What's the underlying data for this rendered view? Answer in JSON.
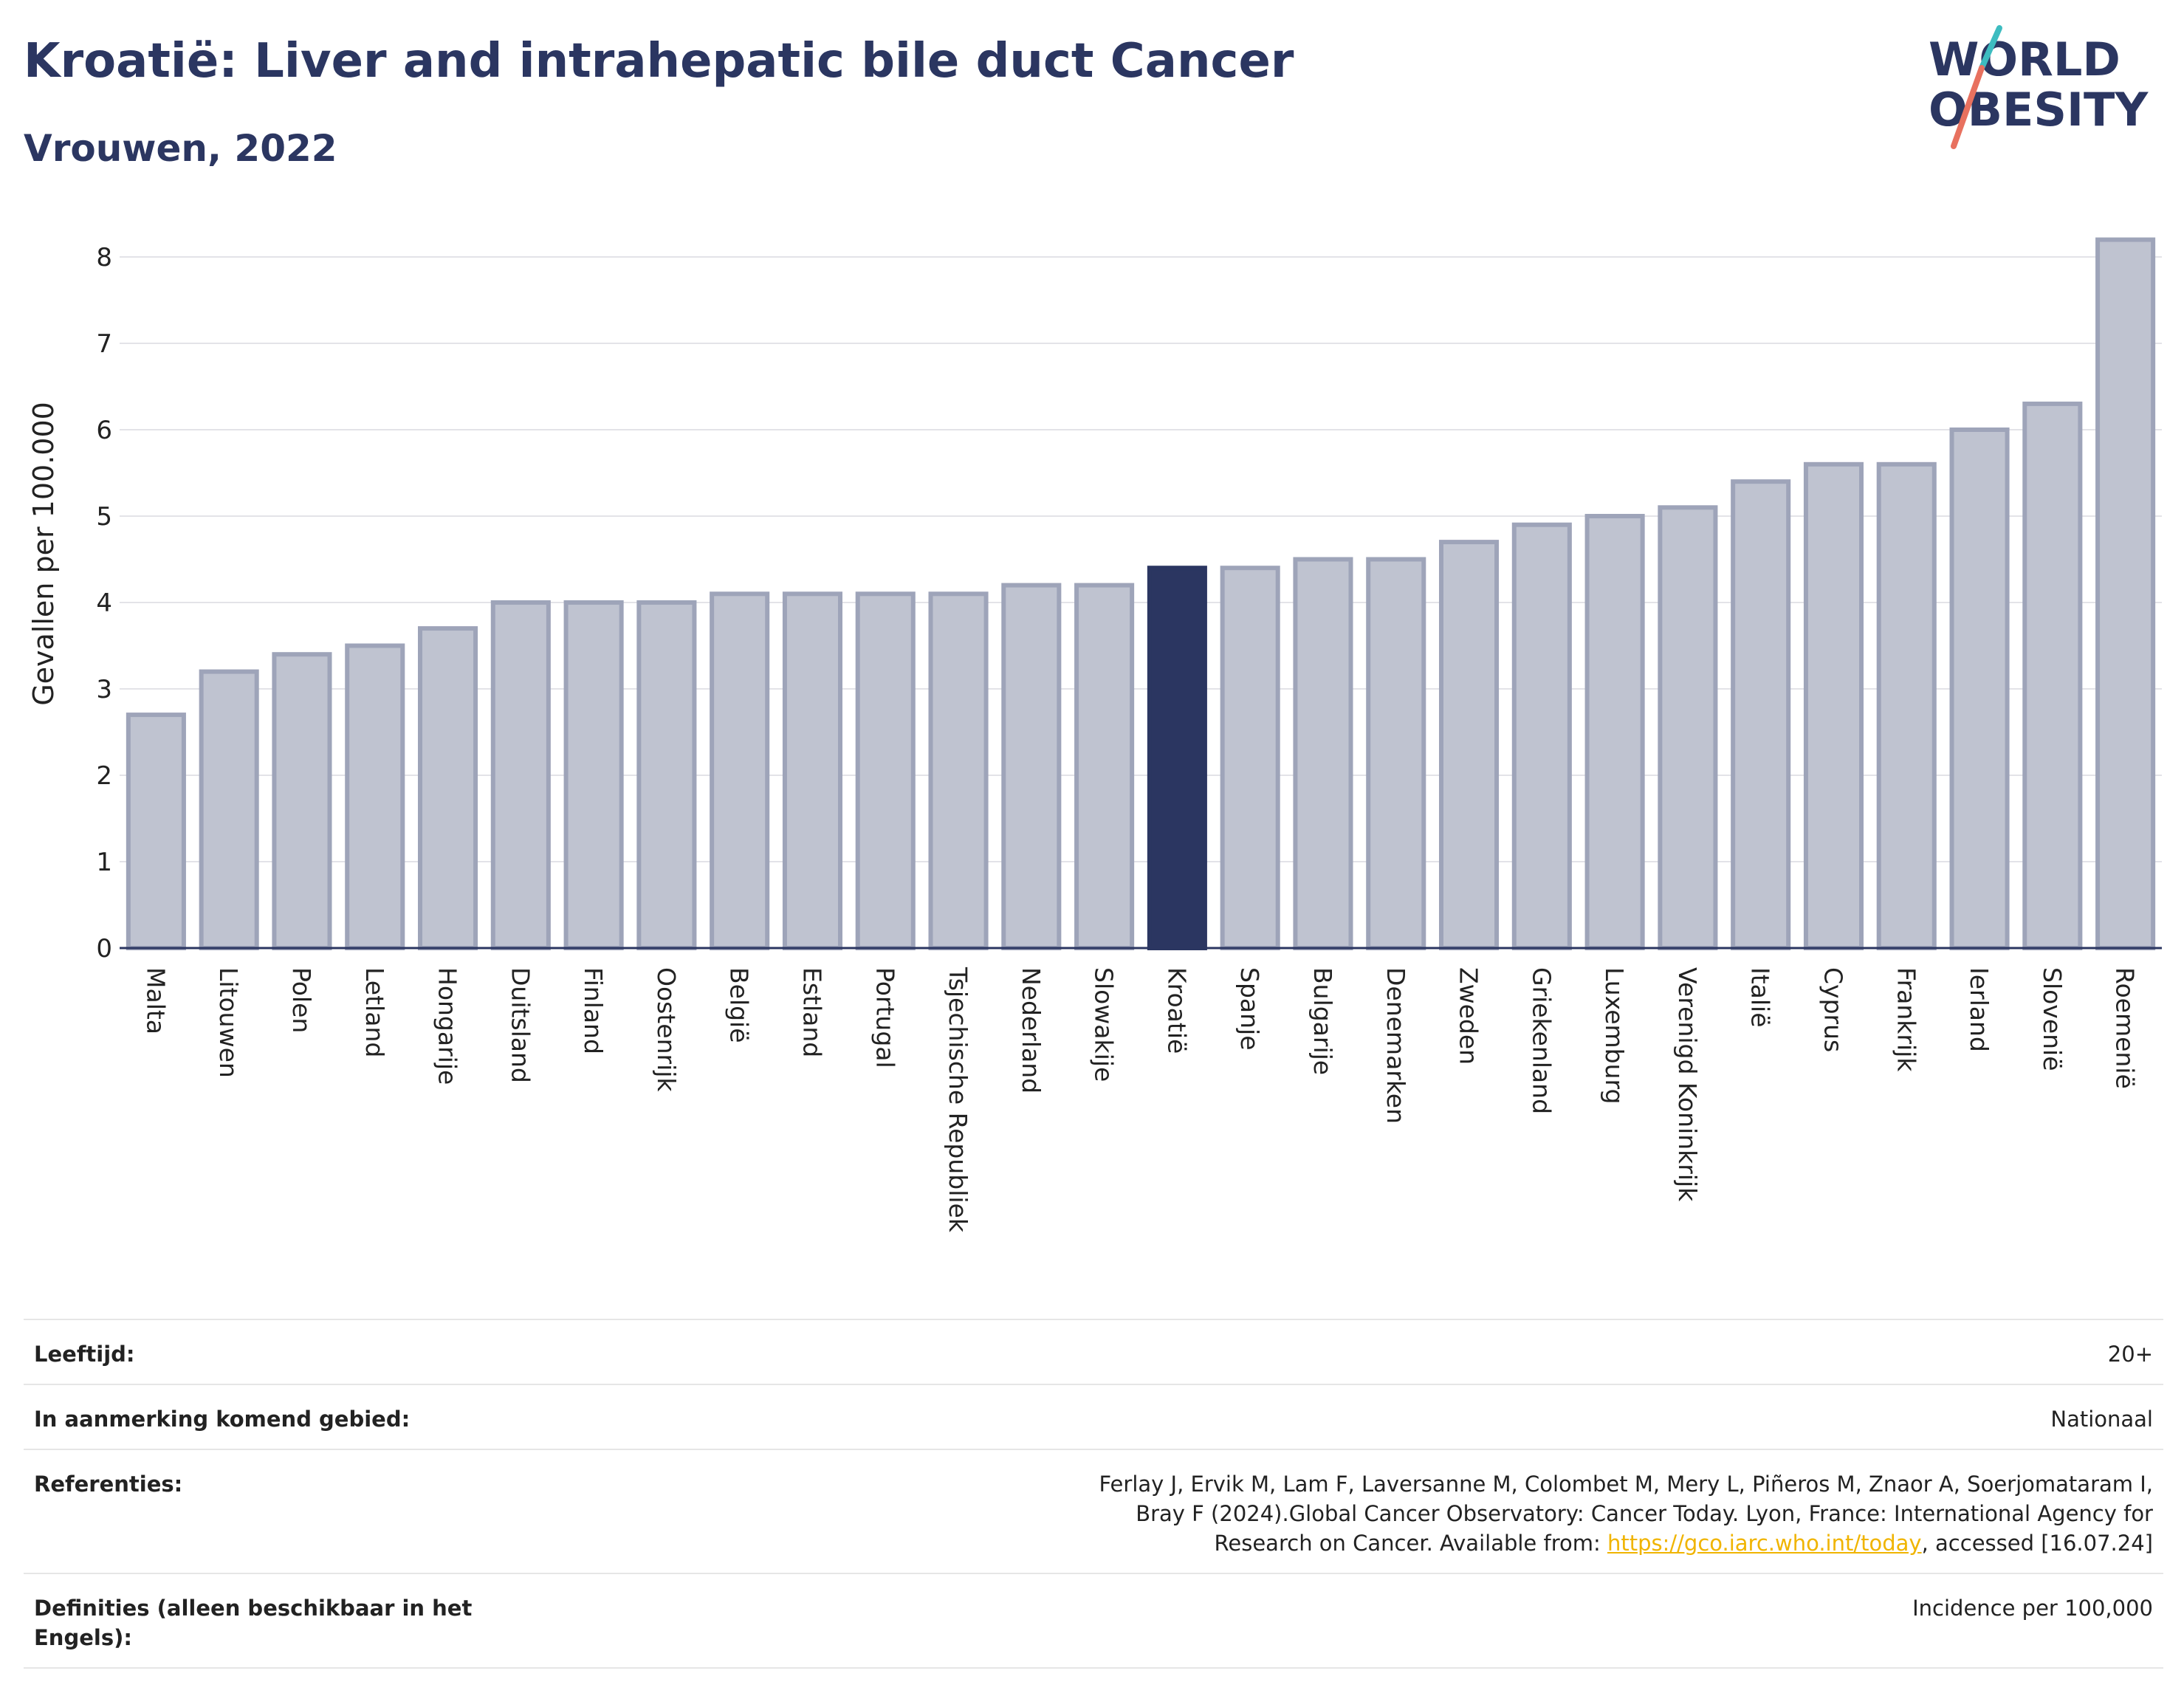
{
  "header": {
    "title": "Kroatië: Liver and intrahepatic bile duct Cancer",
    "subtitle": "Vrouwen, 2022"
  },
  "logo": {
    "line1": "WORLD",
    "line2": "OBESITY"
  },
  "colors": {
    "bar": "#bfc3d0",
    "bar_edge": "#9ea4b9",
    "highlight": "#2b3661",
    "title": "#2b3661"
  },
  "chart_data": {
    "type": "bar",
    "title": "Kroatië: Liver and intrahepatic bile duct Cancer",
    "subtitle": "Vrouwen, 2022",
    "ylabel": "Gevallen per 100.000",
    "xlabel": "",
    "ylim": [
      0,
      8.3
    ],
    "yticks": [
      0,
      1,
      2,
      3,
      4,
      5,
      6,
      7,
      8
    ],
    "grid": true,
    "highlight": "Kroatië",
    "categories": [
      "Malta",
      "Litouwen",
      "Polen",
      "Letland",
      "Hongarije",
      "Duitsland",
      "Finland",
      "Oostenrijk",
      "België",
      "Estland",
      "Portugal",
      "Tsjechische Republiek",
      "Nederland",
      "Slowakije",
      "Kroatië",
      "Spanje",
      "Bulgarije",
      "Denemarken",
      "Zweden",
      "Griekenland",
      "Luxemburg",
      "Verenigd Koninkrijk",
      "Italië",
      "Cyprus",
      "Frankrijk",
      "Ierland",
      "Slovenië",
      "Roemenië"
    ],
    "values": [
      2.7,
      3.2,
      3.4,
      3.5,
      3.7,
      4.0,
      4.0,
      4.0,
      4.1,
      4.1,
      4.1,
      4.1,
      4.2,
      4.2,
      4.4,
      4.4,
      4.5,
      4.5,
      4.7,
      4.9,
      5.0,
      5.1,
      5.4,
      5.6,
      5.6,
      6.0,
      6.3,
      8.2
    ]
  },
  "meta": {
    "age_label": "Leeftijd:",
    "age_value": "20+",
    "area_label": "In aanmerking komend gebied:",
    "area_value": "Nationaal",
    "ref_label": "Referenties:",
    "ref_text_1": "Ferlay J, Ervik M, Lam F, Laversanne M, Colombet M, Mery L, Piñeros M, Znaor A, Soerjomataram I, Bray F (2024).Global Cancer Observatory: Cancer Today. Lyon, France: International Agency for Research on Cancer. Available from: ",
    "ref_link": "https://gco.iarc.who.int/today",
    "ref_text_2": ", accessed [16.07.24]",
    "def_label": "Definities (alleen beschikbaar in het Engels):",
    "def_value": "Incidence per 100,000"
  }
}
